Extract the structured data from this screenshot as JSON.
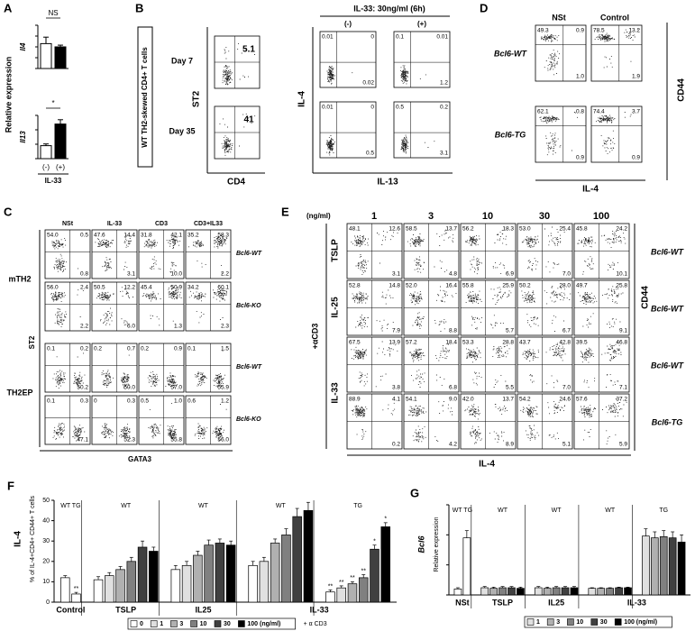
{
  "A": {
    "label": "A",
    "ylabel": "Relative expression",
    "xlabel": "IL-33",
    "categories": [
      "(-)",
      "(+)"
    ],
    "colors": [
      "#ffffff",
      "#000000"
    ],
    "charts": [
      {
        "name": "Il4",
        "values": [
          1.15,
          1.0
        ],
        "errors": [
          0.3,
          0.08
        ],
        "ylim": [
          0,
          2
        ],
        "yticks": [
          0,
          0.5,
          1,
          1.5,
          2
        ],
        "annotation": "NS"
      },
      {
        "name": "Il13",
        "values": [
          0.9,
          2.4
        ],
        "errors": [
          0.12,
          0.3
        ],
        "ylim": [
          0,
          3
        ],
        "yticks": [
          0,
          1,
          2,
          3
        ],
        "annotation": "*"
      }
    ]
  },
  "B": {
    "label": "B",
    "side": "WT TH2-skewed CD4+ T cells",
    "header": "IL-33: 30ng/ml  (6h)",
    "columns": [
      "(-)",
      "(+)"
    ],
    "rows": [
      {
        "name": "Day 7",
        "st2": [
          "5.1"
        ],
        "plots": [
          [
            "0.01",
            "0",
            "0.02"
          ],
          [
            "0.1",
            "0.01",
            "1.2"
          ]
        ]
      },
      {
        "name": "Day 35",
        "st2": [
          "41"
        ],
        "plots": [
          [
            "0.01",
            "0",
            "0.5"
          ],
          [
            "0.5",
            "0.2",
            "3.1"
          ]
        ]
      }
    ],
    "st2_ylabel": "ST2",
    "st2_xlabel": "CD4",
    "ylabel": "IL-4",
    "xlabel": "IL-13"
  },
  "C": {
    "label": "C",
    "columns": [
      "NSt",
      "IL-33",
      "CD3",
      "CD3+IL33"
    ],
    "groups": [
      "mTH2",
      "TH2EP"
    ],
    "rows": [
      {
        "name": "Bcl6-WT",
        "plots": [
          [
            "54.0",
            "0.5",
            "0.8"
          ],
          [
            "47.6",
            "14.4",
            "3.1"
          ],
          [
            "31.8",
            "42.1",
            "10.0"
          ],
          [
            "35.2",
            "58.3",
            "2.2"
          ]
        ]
      },
      {
        "name": "Bcl6-KO",
        "plots": [
          [
            "56.0",
            "2.4",
            "2.2"
          ],
          [
            "50.5",
            "12.2",
            "6.0"
          ],
          [
            "45.4",
            "50.9",
            "1.3"
          ],
          [
            "34.2",
            "60.1",
            "2.3"
          ]
        ]
      },
      {
        "name": "Bcl6-WT",
        "plots": [
          [
            "0.1",
            "0.2",
            "50.2"
          ],
          [
            "0.2",
            "0.7",
            "50.0"
          ],
          [
            "0.2",
            "0.9",
            "57.0"
          ],
          [
            "0.1",
            "1.5",
            "55.9"
          ]
        ]
      },
      {
        "name": "Bcl6-KO",
        "plots": [
          [
            "0.1",
            "0.3",
            "47.1"
          ],
          [
            "0",
            "0.3",
            "52.3"
          ],
          [
            "0.5",
            "1.0",
            "55.8"
          ],
          [
            "0.6",
            "1.2",
            "56.0"
          ]
        ]
      }
    ],
    "ylabel": "ST2",
    "xlabel": "GATA3"
  },
  "D": {
    "label": "D",
    "columns": [
      "NSt",
      "Control"
    ],
    "rows": [
      {
        "name": "Bcl6-WT",
        "plots": [
          [
            "49.3",
            "0.9",
            "1.0"
          ],
          [
            "78.5",
            "13.2",
            "1.9"
          ]
        ]
      },
      {
        "name": "Bcl6-TG",
        "plots": [
          [
            "62.1",
            "0.8",
            "0.9"
          ],
          [
            "74.4",
            "3.7",
            "0.9"
          ]
        ]
      }
    ],
    "ylabel": "CD44",
    "xlabel": "IL-4"
  },
  "E": {
    "label": "E",
    "unit": "(ng/ml)",
    "columns": [
      "1",
      "3",
      "10",
      "30",
      "100"
    ],
    "stimuli": [
      "TSLP",
      "IL-25",
      "IL-33"
    ],
    "common": "+αCD3",
    "rows": [
      {
        "name": "Bcl6-WT",
        "plots": [
          [
            "48.1",
            "12.6",
            "3.1"
          ],
          [
            "58.5",
            "13.7",
            "4.8"
          ],
          [
            "56.2",
            "18.3",
            "6.9"
          ],
          [
            "53.0",
            "25.4",
            "7.0"
          ],
          [
            "45.8",
            "24.2",
            "10.1"
          ]
        ]
      },
      {
        "name": "Bcl6-WT",
        "plots": [
          [
            "52.8",
            "14.8",
            "7.9"
          ],
          [
            "52.0",
            "16.4",
            "8.8"
          ],
          [
            "55.8",
            "25.9",
            "5.7"
          ],
          [
            "50.2",
            "28.0",
            "6.7"
          ],
          [
            "49.7",
            "25.8",
            "9.1"
          ]
        ]
      },
      {
        "name": "Bcl6-WT",
        "plots": [
          [
            "67.5",
            "13.9",
            "3.8"
          ],
          [
            "57.2",
            "18.4",
            "6.8"
          ],
          [
            "53.3",
            "28.8",
            "5.5"
          ],
          [
            "43.7",
            "42.8",
            "7.0"
          ],
          [
            "39.5",
            "46.8",
            "7.1"
          ]
        ]
      },
      {
        "name": "Bcl6-TG",
        "plots": [
          [
            "88.9",
            "4.1",
            "0.2"
          ],
          [
            "54.1",
            "9.0",
            "4.2"
          ],
          [
            "42.0",
            "13.7",
            "8.9"
          ],
          [
            "54.2",
            "24.6",
            "5.1"
          ],
          [
            "57.6",
            "37.2",
            "5.9"
          ]
        ]
      }
    ],
    "ylabel": "CD44",
    "xlabel": "IL-4"
  },
  "F": {
    "label": "F",
    "ylabel": "IL-4",
    "ylabel2": "% of IL-4+CD4+ CD44+ T cells",
    "ylim": [
      0,
      50
    ],
    "yticks": [
      0,
      10,
      20,
      30,
      40,
      50
    ],
    "tick_labels": true,
    "groups": [
      {
        "top": "WT  TG",
        "name": "Control",
        "values": [
          12,
          4
        ],
        "errors": [
          1,
          0.8
        ],
        "colors": [
          "#ffffff",
          "#ffffff"
        ],
        "stars": [
          null,
          "**"
        ]
      },
      {
        "top": "WT",
        "name": "TSLP",
        "values": [
          11,
          13,
          16,
          20,
          27,
          25
        ],
        "errors": [
          1.5,
          1.5,
          1.5,
          2,
          3,
          2
        ],
        "colors": [
          "#ffffff",
          "#e0e0e0",
          "#b0b0b0",
          "#808080",
          "#404040",
          "#000000"
        ]
      },
      {
        "top": "WT",
        "name": "IL25",
        "values": [
          16,
          18,
          23,
          28,
          29,
          28
        ],
        "errors": [
          2,
          2,
          2,
          2.5,
          2,
          2
        ],
        "colors": [
          "#ffffff",
          "#e0e0e0",
          "#b0b0b0",
          "#808080",
          "#404040",
          "#000000"
        ]
      },
      {
        "top": "WT",
        "name": "IL-33",
        "values": [
          18,
          20,
          29,
          33,
          42,
          45
        ],
        "errors": [
          2,
          2,
          2,
          3,
          4,
          4
        ],
        "colors": [
          "#ffffff",
          "#e0e0e0",
          "#b0b0b0",
          "#808080",
          "#404040",
          "#000000"
        ]
      },
      {
        "top": "TG",
        "values": [
          5,
          7,
          9,
          12,
          26,
          37
        ],
        "errors": [
          1,
          1,
          1,
          1.5,
          2,
          2
        ],
        "colors": [
          "#ffffff",
          "#e0e0e0",
          "#b0b0b0",
          "#808080",
          "#404040",
          "#000000"
        ],
        "stars": [
          "**",
          "**",
          "**",
          "**",
          "*",
          "*"
        ]
      }
    ],
    "legend": [
      {
        "label": "0",
        "color": "#ffffff"
      },
      {
        "label": "1",
        "color": "#e0e0e0"
      },
      {
        "label": "3",
        "color": "#b0b0b0"
      },
      {
        "label": "10",
        "color": "#808080"
      },
      {
        "label": "30",
        "color": "#404040"
      },
      {
        "label": "100 (ng/ml)",
        "color": "#000000"
      }
    ],
    "legend_note": "+ α CD3"
  },
  "G": {
    "label": "G",
    "ylabel": "Bcl6",
    "ylabel2": "Relative expression",
    "ylim": [
      0,
      15
    ],
    "yticks": [
      0,
      5,
      10,
      15
    ],
    "tick_labels": false,
    "groups": [
      {
        "top": "WT  TG",
        "name": "NSt",
        "values": [
          1,
          9.5
        ],
        "errors": [
          0.2,
          1.2
        ],
        "colors": [
          "#ffffff",
          "#ffffff"
        ]
      },
      {
        "top": "WT",
        "name": "TSLP",
        "values": [
          1.2,
          1.1,
          1.2,
          1.2,
          1.1
        ],
        "errors": [
          0.2,
          0.2,
          0.2,
          0.2,
          0.2
        ],
        "colors": [
          "#e0e0e0",
          "#b0b0b0",
          "#808080",
          "#404040",
          "#000000"
        ]
      },
      {
        "top": "WT",
        "name": "IL25",
        "values": [
          1.2,
          1.1,
          1.2,
          1.2,
          1.2
        ],
        "errors": [
          0.2,
          0.2,
          0.2,
          0.2,
          0.2
        ],
        "colors": [
          "#e0e0e0",
          "#b0b0b0",
          "#808080",
          "#404040",
          "#000000"
        ]
      },
      {
        "top": "WT",
        "name": "IL-33",
        "values": [
          1.1,
          1.1,
          1.1,
          1.2,
          1.2
        ],
        "errors": [
          0.1,
          0.1,
          0.1,
          0.1,
          0.1
        ],
        "colors": [
          "#e0e0e0",
          "#b0b0b0",
          "#808080",
          "#404040",
          "#000000"
        ]
      },
      {
        "top": "TG",
        "values": [
          9.8,
          9.5,
          9.7,
          9.5,
          8.8
        ],
        "errors": [
          1.2,
          1,
          1,
          1,
          1.2
        ],
        "colors": [
          "#e0e0e0",
          "#b0b0b0",
          "#808080",
          "#404040",
          "#000000"
        ]
      }
    ],
    "legend": [
      {
        "label": "1",
        "color": "#e0e0e0"
      },
      {
        "label": "3",
        "color": "#b0b0b0"
      },
      {
        "label": "10",
        "color": "#808080"
      },
      {
        "label": "30",
        "color": "#404040"
      },
      {
        "label": "100 (ng/ml)",
        "color": "#000000"
      }
    ]
  }
}
